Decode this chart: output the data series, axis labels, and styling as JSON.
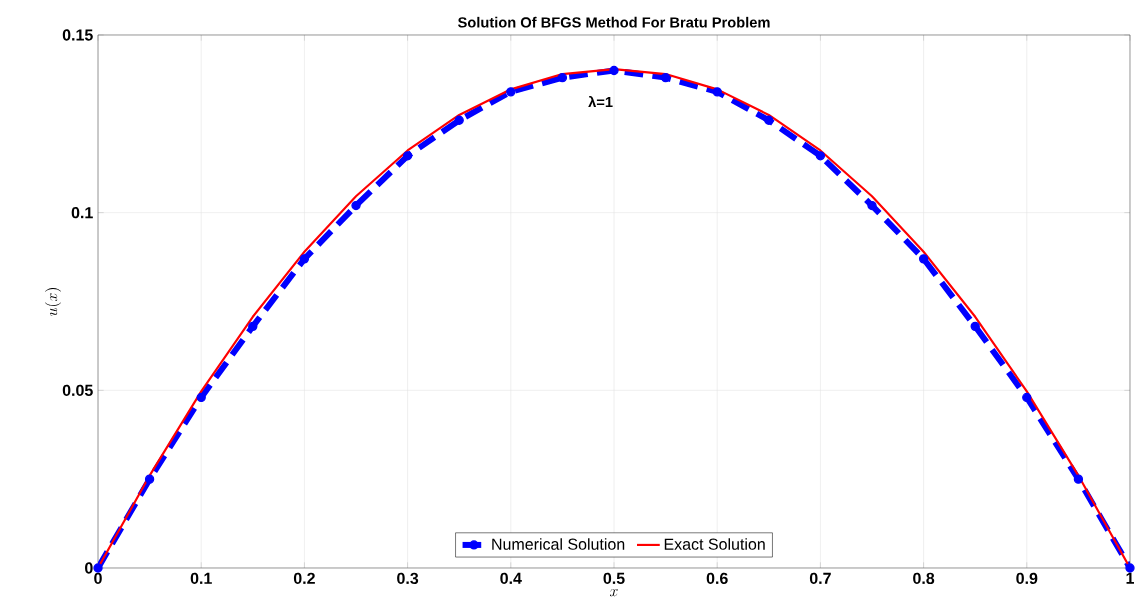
{
  "chart_data": {
    "type": "line",
    "title": "Solution Of BFGS Method For Bratu Problem",
    "xlabel": "x",
    "ylabel": "u(x)",
    "x": [
      0,
      0.05,
      0.1,
      0.15,
      0.2,
      0.25,
      0.3,
      0.35,
      0.4,
      0.45,
      0.5,
      0.55,
      0.6,
      0.65,
      0.7,
      0.75,
      0.8,
      0.85,
      0.9,
      0.95,
      1
    ],
    "series": [
      {
        "name": "Numerical Solution",
        "color": "#0000ff",
        "marker": "circle",
        "line_style": "dashed",
        "values": [
          0,
          0.025,
          0.048,
          0.068,
          0.087,
          0.102,
          0.116,
          0.126,
          0.134,
          0.138,
          0.14,
          0.138,
          0.134,
          0.126,
          0.116,
          0.102,
          0.087,
          0.068,
          0.048,
          0.025,
          0
        ]
      },
      {
        "name": "Exact Solution",
        "color": "#ff0000",
        "marker": "none",
        "line_style": "solid",
        "values": [
          0,
          0.026,
          0.0497,
          0.0707,
          0.089,
          0.1046,
          0.1175,
          0.1275,
          0.1347,
          0.139,
          0.1404,
          0.139,
          0.1347,
          0.1275,
          0.1175,
          0.1046,
          0.089,
          0.0707,
          0.0497,
          0.026,
          0
        ]
      }
    ],
    "annotations": [
      "λ=1"
    ],
    "xlim": [
      0,
      1
    ],
    "ylim": [
      0,
      0.15
    ],
    "xticks": [
      0,
      0.1,
      0.2,
      0.3,
      0.4,
      0.5,
      0.6,
      0.7,
      0.8,
      0.9,
      1
    ],
    "yticks": [
      0,
      0.05,
      0.1,
      0.15
    ],
    "grid": true,
    "legend": "bottom"
  }
}
